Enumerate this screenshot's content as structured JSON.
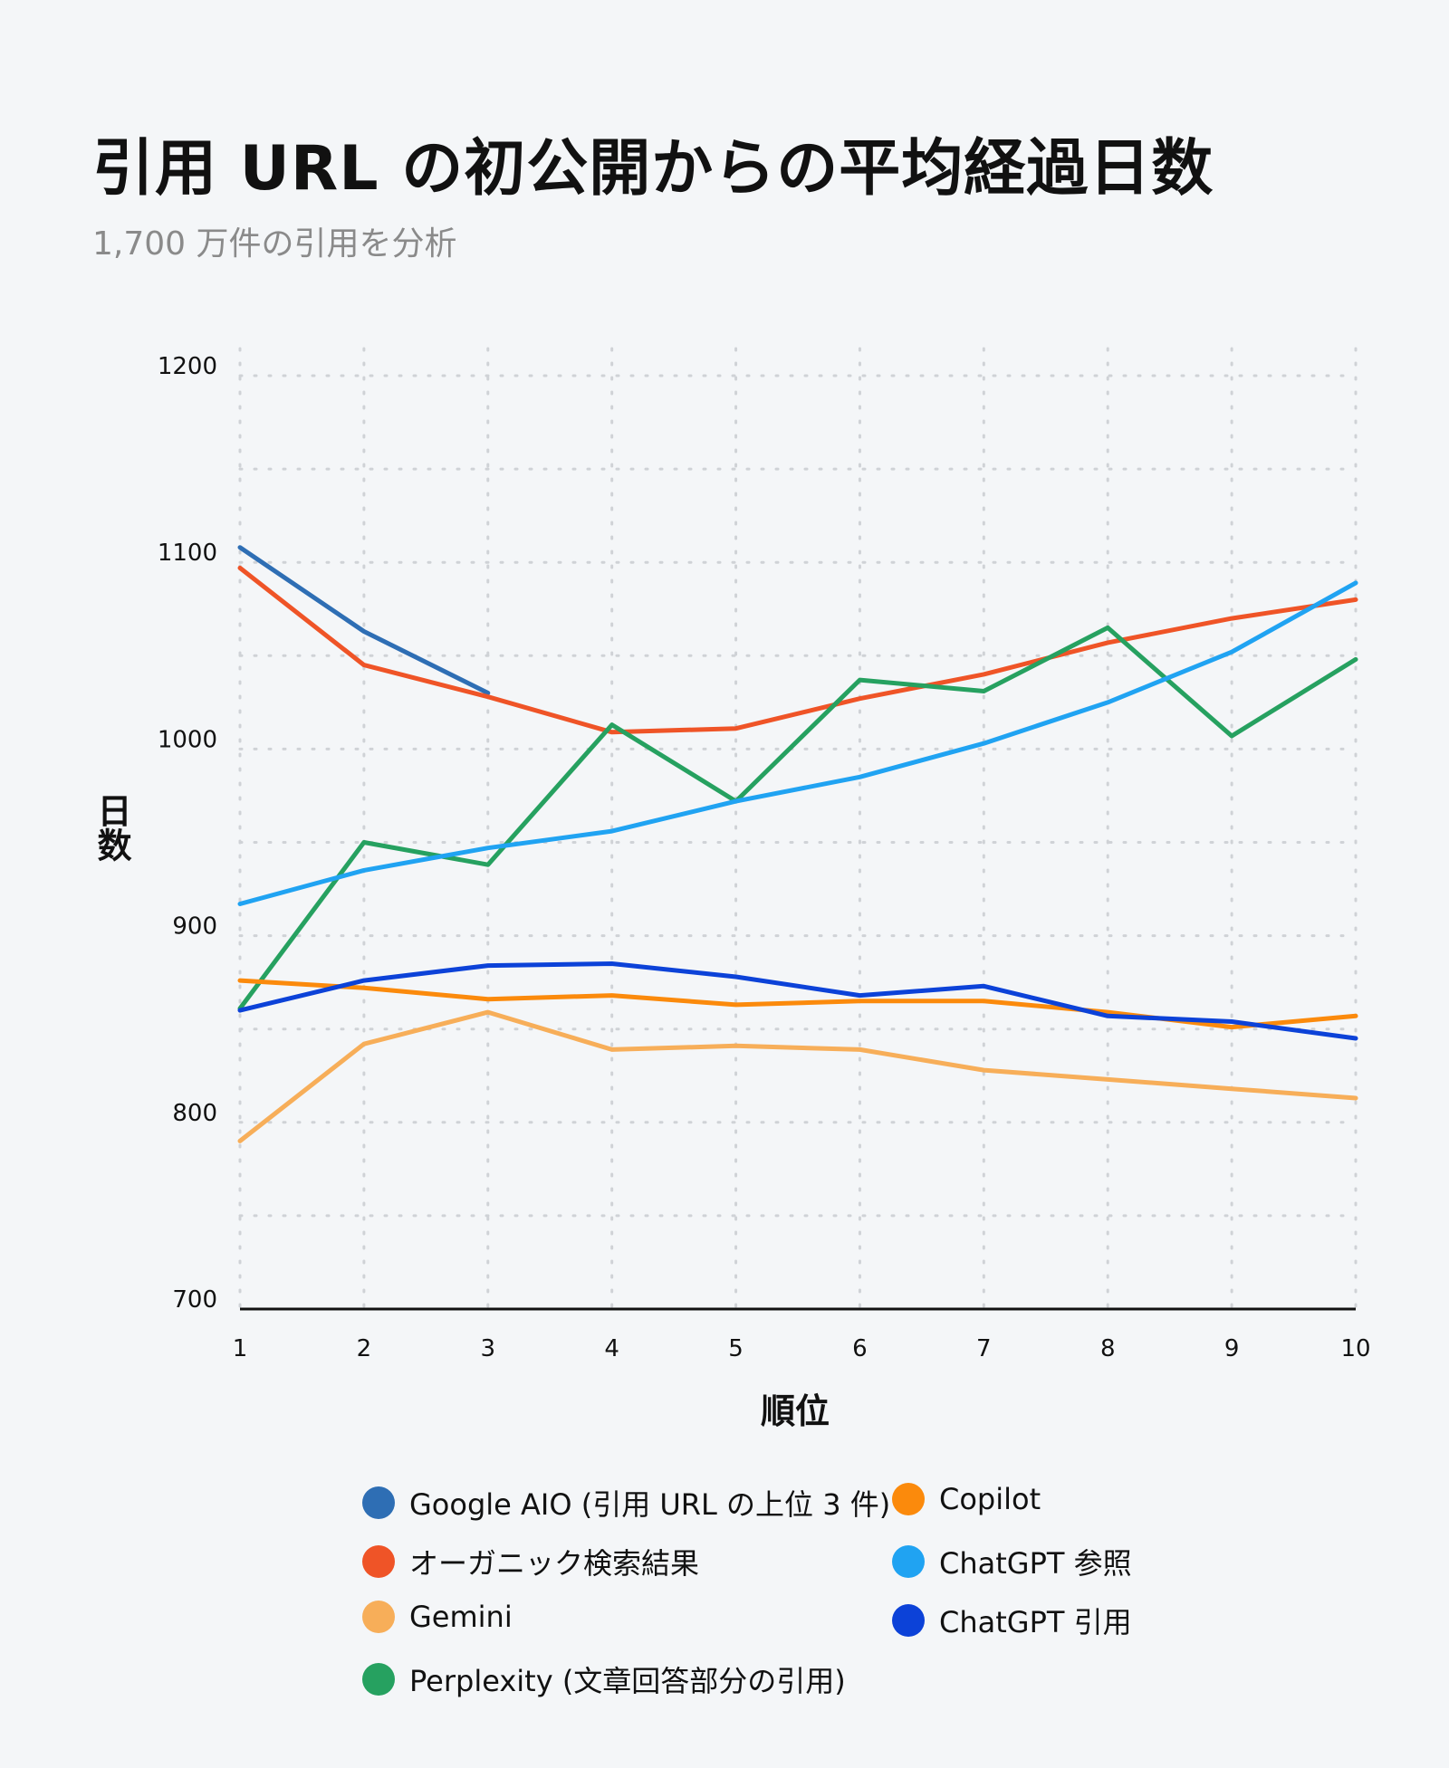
{
  "title": "引用 URL の初公開からの平均経過日数",
  "subtitle": "1,700 万件の引用を分析",
  "chart_data": {
    "type": "line",
    "xlabel": "順位",
    "ylabel": "日数",
    "x": [
      1,
      2,
      3,
      4,
      5,
      6,
      7,
      8,
      9,
      10
    ],
    "ylim": [
      700,
      1200
    ],
    "yticks": [
      700,
      800,
      900,
      1000,
      1100,
      1200
    ],
    "grid": true,
    "legend_position": "bottom",
    "series": [
      {
        "name": "Google AIO (引用 URL の上位 3 件)",
        "color": "#2e6eb4",
        "values": [
          1108,
          1063,
          1030,
          null,
          null,
          null,
          null,
          null,
          null,
          null
        ]
      },
      {
        "name": "オーガニック検索結果",
        "color": "#ef5427",
        "values": [
          1097,
          1045,
          1028,
          1009,
          1011,
          1027,
          1040,
          1057,
          1070,
          1080
        ]
      },
      {
        "name": "Gemini",
        "color": "#f7ae59",
        "values": [
          790,
          842,
          859,
          839,
          841,
          839,
          828,
          823,
          818,
          813
        ]
      },
      {
        "name": "Perplexity (文章回答部分の引用)",
        "color": "#26a160",
        "values": [
          861,
          950,
          938,
          1013,
          972,
          1037,
          1031,
          1065,
          1007,
          1048
        ]
      },
      {
        "name": "Copilot",
        "color": "#fb8a0c",
        "values": [
          876,
          872,
          866,
          868,
          863,
          865,
          865,
          859,
          851,
          857
        ]
      },
      {
        "name": "ChatGPT 参照",
        "color": "#20a3f2",
        "values": [
          917,
          935,
          947,
          956,
          972,
          985,
          1003,
          1025,
          1052,
          1089
        ]
      },
      {
        "name": "ChatGPT 引用",
        "color": "#0c42d8",
        "values": [
          860,
          876,
          884,
          885,
          878,
          868,
          873,
          857,
          854,
          845
        ]
      }
    ]
  }
}
